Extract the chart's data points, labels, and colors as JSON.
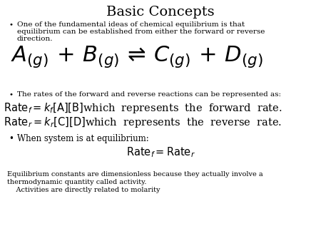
{
  "title": "Basic Concepts",
  "bg_color": "#ffffff",
  "text_color": "#000000",
  "title_fontsize": 14,
  "body_fontsize": 7.5,
  "rate_fontsize": 10.5,
  "eq_fontsize": 22,
  "bullet1_line1": "One of the fundamental ideas of chemical equilibrium is that",
  "bullet1_line2": "equilibrium can be established from either the forward or reverse",
  "bullet1_line3": "direction.",
  "bullet2": "The rates of the forward and reverse reactions can be represented as:",
  "bullet3": "When system is at equilibrium:",
  "footer1": "Equilibrium constants are dimensionless because they actually involve a",
  "footer2": "thermodynamic quantity called activity.",
  "footer3": "    Activities are directly related to molarity"
}
